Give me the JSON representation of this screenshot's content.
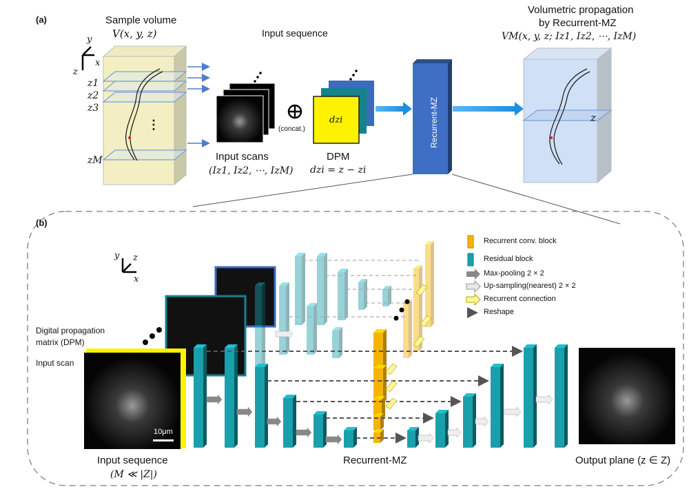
{
  "panel_a": {
    "label": "(a)",
    "sample_volume_title": "Sample volume",
    "sample_volume_formula": "V(x, y, z)",
    "axis_y": "y",
    "axis_x": "x",
    "axis_z": "z",
    "slice_labels": [
      "z1",
      "z2",
      "z3",
      "zM"
    ],
    "input_sequence_title": "Input sequence",
    "concat_label": "(concat.)",
    "dzi_label": "dzi",
    "input_scans_label": "Input scans",
    "input_scans_formula": "(Iz1, Iz2, ⋯, IzM)",
    "dpm_label": "DPM",
    "dpm_formula": "dzi = z − zi",
    "network_label": "Recurrent-MZ",
    "output_title_line1": "Volumetric propagation",
    "output_title_line2": "by Recurrent-MZ",
    "output_formula": "VM(x, y, z; Iz1, Iz2, ⋯, IzM)",
    "output_z_label": "z"
  },
  "panel_b": {
    "label": "(b)",
    "axis_y": "y",
    "axis_z": "z",
    "axis_x": "x",
    "dpm_line1": "Digital propagation",
    "dpm_line2": "matrix (DPM)",
    "input_scan_label": "Input scan",
    "scale_bar": "10μm",
    "input_sequence_label": "Input sequence",
    "input_sequence_cond": "(M ≪ |Z|)",
    "network_label": "Recurrent-MZ",
    "output_label": "Output plane (z ∈ Z)",
    "legend": [
      {
        "name": "recurrent-conv-block",
        "label": "Recurrent conv. block"
      },
      {
        "name": "residual-block",
        "label": "Residual block"
      },
      {
        "name": "max-pooling",
        "label": "Max-pooling 2 × 2"
      },
      {
        "name": "up-sampling",
        "label": "Up-sampling(nearest) 2 × 2"
      },
      {
        "name": "recurrent-connection",
        "label": "Recurrent connection"
      },
      {
        "name": "reshape",
        "label": "Reshape"
      }
    ]
  },
  "colors": {
    "teal": "#1aa0ac",
    "orange": "#f5b400",
    "yellow": "#fff200",
    "blue_block": "#3b6fc6",
    "arrow_blue": "#2f9be6",
    "volume_yellow": "#f4efc2",
    "volume_blue": "#cfe0f7"
  }
}
